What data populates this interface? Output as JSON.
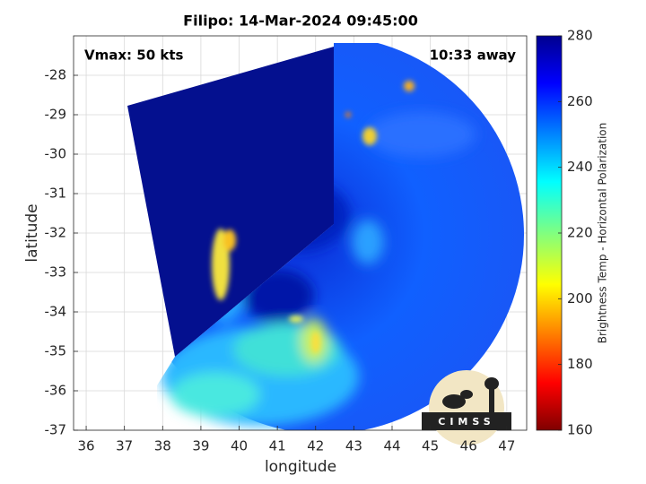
{
  "chart_data": {
    "type": "image",
    "title": "Filipo: 14-Mar-2024 09:45:00",
    "annotations": [
      "Vmax: 50 kts",
      "10:33 away"
    ],
    "x_label": "longitude",
    "y_label": "latitude",
    "xlim": [
      35.67,
      47.52
    ],
    "xticks": [
      36,
      37,
      38,
      39,
      40,
      41,
      42,
      43,
      44,
      45,
      46,
      47
    ],
    "ylim": [
      -37,
      -27
    ],
    "yticks": [
      -28,
      -29,
      -30,
      -31,
      -32,
      -33,
      -34,
      -35,
      -36,
      -37
    ],
    "grid": true,
    "colorbar": {
      "label": "Brightness Temp - Horizontal Polarization",
      "lim": [
        160,
        280
      ],
      "ticks": [
        160,
        180,
        200,
        220,
        240,
        260,
        280
      ]
    },
    "logo": "CIMSS"
  }
}
